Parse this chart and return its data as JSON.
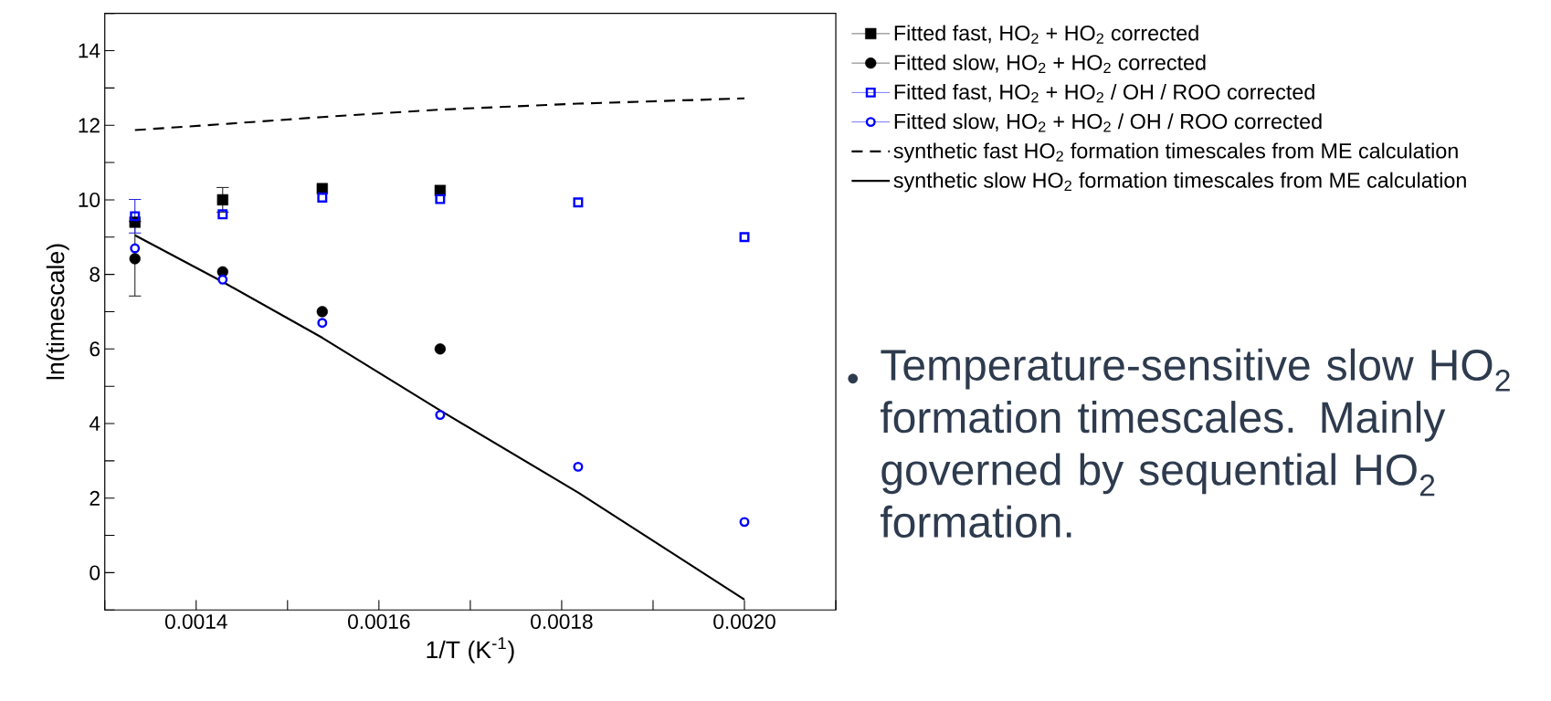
{
  "chart_data": {
    "type": "scatter",
    "xlabel": "1/T (K$^{-1}$)",
    "ylabel": "ln(timescale)",
    "xlim": [
      0.0013,
      0.0021
    ],
    "ylim": [
      -1,
      15
    ],
    "xticks": [
      {
        "value": 0.0013,
        "label": null
      },
      0.0014,
      {
        "value": 0.0015,
        "label": null
      },
      0.0016,
      {
        "value": 0.0017,
        "label": null
      },
      0.0018,
      {
        "value": 0.0019,
        "label": null
      },
      {
        "value": 0.002,
        "label": "0.0020"
      },
      {
        "value": 0.0021,
        "label": null
      }
    ],
    "yticks": [
      {
        "value": -1,
        "label": null
      },
      0,
      {
        "value": 1,
        "label": null
      },
      2,
      {
        "value": 3,
        "label": null
      },
      4,
      {
        "value": 5,
        "label": null
      },
      6,
      {
        "value": 7,
        "label": null
      },
      8,
      {
        "value": 9,
        "label": null
      },
      10,
      {
        "value": 11,
        "label": null
      },
      12,
      {
        "value": 13,
        "label": null
      },
      14,
      {
        "value": 15,
        "label": null
      }
    ],
    "legend": "top right",
    "grid": false,
    "series": [
      {
        "name": "Fitted fast, HO$_{2}$ + HO$_{2}$ corrected",
        "marker": "square",
        "color": "#000000",
        "x": [
          0.001333,
          0.001429,
          0.001538,
          0.001667
        ],
        "values": [
          9.4,
          10.0,
          10.3,
          10.25
        ],
        "errors": [
          null,
          0.33,
          null,
          null
        ]
      },
      {
        "name": "Fitted slow, HO$_{2}$ + HO$_{2}$ corrected",
        "marker": "circle",
        "color": "#000000",
        "x": [
          0.001333,
          0.001429,
          0.001538,
          0.001667
        ],
        "values": [
          8.42,
          8.07,
          7.0,
          6.0
        ],
        "errors": [
          1.0,
          null,
          null,
          null
        ]
      },
      {
        "name": "Fitted fast, HO$_{2}$ + HO$_{2}$ / OH / ROO corrected",
        "marker": "square",
        "color": "#0000ff",
        "x": [
          0.001333,
          0.001429,
          0.001538,
          0.001667,
          0.001818,
          0.002
        ],
        "values": [
          9.56,
          9.61,
          10.06,
          10.02,
          9.93,
          9.0
        ],
        "errors": [
          0.45,
          null,
          null,
          null,
          null,
          null
        ]
      },
      {
        "name": "Fitted slow, HO$_{2}$ + HO$_{2}$ / OH / ROO corrected",
        "marker": "circle",
        "color": "#0000ff",
        "x": [
          0.001333,
          0.001429,
          0.001538,
          0.001667,
          0.001818,
          0.002
        ],
        "values": [
          8.7,
          7.86,
          6.7,
          4.23,
          2.84,
          1.36
        ]
      },
      {
        "name": "synthetic fast HO$_{2}$ formation timescales from ME calculation",
        "type": "line",
        "marker": "none",
        "line_style": "dashed",
        "color": "#000000",
        "x": [
          0.001333,
          0.001429,
          0.001538,
          0.001667,
          0.001818,
          0.002
        ],
        "values": [
          11.87,
          12.03,
          12.22,
          12.42,
          12.58,
          12.72
        ]
      },
      {
        "name": "synthetic slow HO$_{2}$ formation timescales from ME calculation",
        "type": "line",
        "marker": "none",
        "line_style": "solid",
        "color": "#000000",
        "x": [
          0.001333,
          0.001429,
          0.001538,
          0.001667,
          0.001818,
          0.002
        ],
        "values": [
          9.05,
          7.8,
          6.3,
          4.35,
          2.15,
          -0.72
        ]
      }
    ],
    "annotations": [
      "Temperature-sensitive slow HO$_{2}$ formation timescales. Mainly governed by sequential HO$_{2}$ formation."
    ]
  }
}
